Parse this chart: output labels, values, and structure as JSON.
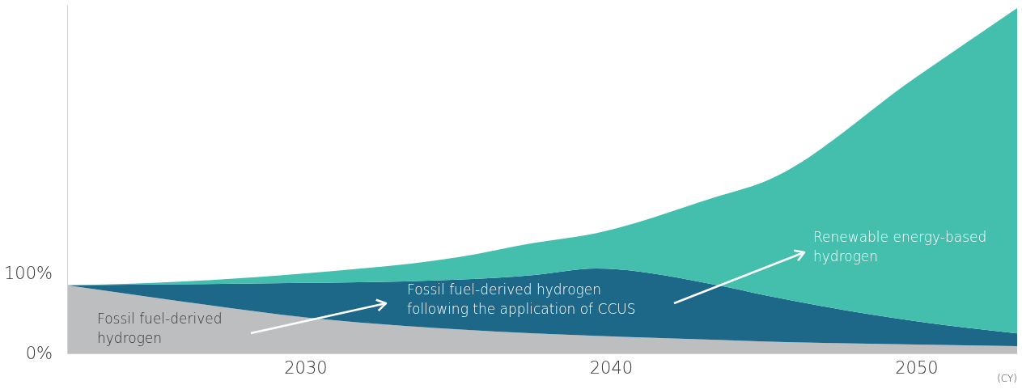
{
  "chart_data": {
    "type": "area",
    "stacked": true,
    "xlabel": "(CY)",
    "x": [
      2022.2,
      2025,
      2030,
      2035,
      2037.5,
      2039.5,
      2043.5,
      2045,
      2050,
      2053.3
    ],
    "series": [
      {
        "name": "Fossil fuel-derived\nhydrogen",
        "color": "#bcbec0",
        "values": [
          85,
          70,
          45,
          30,
          25,
          22,
          17,
          15,
          11,
          9
        ]
      },
      {
        "name": "Fossil fuel-derived hydrogen\nfollowing the application of CCUS",
        "color": "#1d6788",
        "values": [
          0,
          16,
          43,
          62,
          73,
          84,
          68,
          58,
          29,
          16
        ]
      },
      {
        "name": "Renewable energy-based\nhydrogen",
        "color": "#44bfad",
        "values": [
          0,
          2,
          12,
          28,
          40,
          44,
          111,
          141,
          305,
          406
        ]
      }
    ],
    "xlim": [
      2022.2,
      2053.3
    ],
    "xticks": [
      2030,
      2040,
      2050
    ],
    "ylim": [
      0,
      435
    ],
    "yticks": [
      {
        "value": 0,
        "label": "0%"
      },
      {
        "value": 100,
        "label": "100%"
      }
    ]
  }
}
